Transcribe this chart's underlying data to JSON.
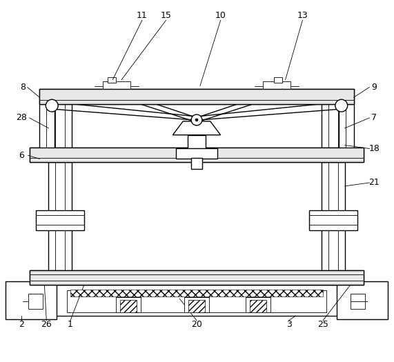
{
  "background_color": "#ffffff",
  "line_color": "#000000",
  "lw": 1.0,
  "tlw": 0.6,
  "fig_width": 5.71,
  "fig_height": 5.25,
  "dpi": 100
}
